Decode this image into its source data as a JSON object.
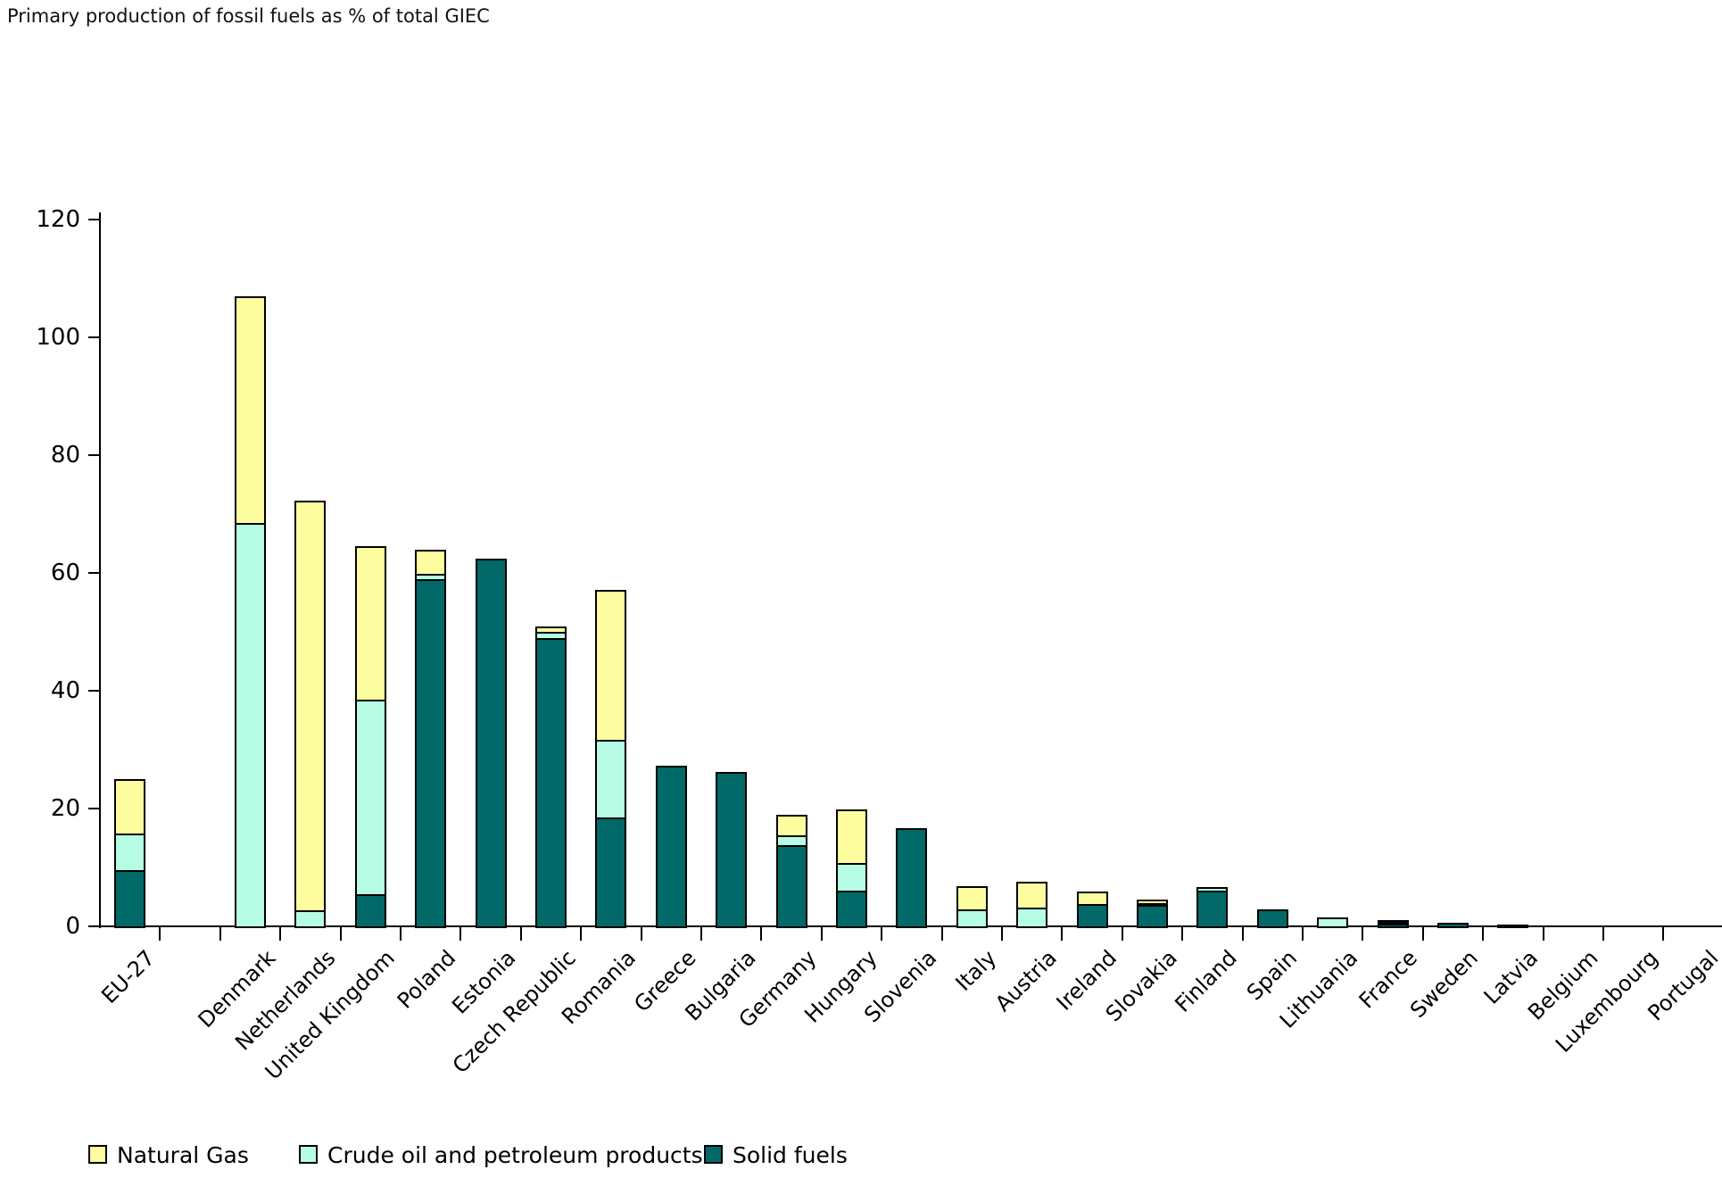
{
  "chart_data": {
    "type": "bar",
    "subtype": "stacked-vertical",
    "title": "Primary production of fossil fuels as % of total GIEC",
    "xlabel": "",
    "ylabel": "",
    "ylim": [
      0,
      120
    ],
    "ytick_values": [
      0,
      20,
      40,
      60,
      80,
      100,
      120
    ],
    "ytick_labels": [
      "0",
      "20",
      "40",
      "60",
      "80",
      "100",
      "120"
    ],
    "grid": false,
    "legend_position": "bottom",
    "gap_after_first_category": true,
    "categories": [
      "EU-27",
      "Denmark",
      "Netherlands",
      "United Kingdom",
      "Poland",
      "Estonia",
      "Czech Republic",
      "Romania",
      "Greece",
      "Bulgaria",
      "Germany",
      "Hungary",
      "Slovenia",
      "Italy",
      "Austria",
      "Ireland",
      "Slovakia",
      "Finland",
      "Spain",
      "Lithuania",
      "France",
      "Sweden",
      "Latvia",
      "Belgium",
      "Luxembourg",
      "Portugal"
    ],
    "series": [
      {
        "name": "Solid fuels",
        "color": "#026969",
        "stack_order": "bottom",
        "values": [
          9.6,
          0,
          0,
          5.5,
          59.0,
          62.5,
          48.9,
          18.5,
          27.2,
          26.2,
          13.8,
          6.1,
          16.7,
          0,
          0,
          3.8,
          3.7,
          6.0,
          2.9,
          0,
          0.4,
          0.6,
          0.3,
          0,
          0,
          0
        ]
      },
      {
        "name": "Crude oil and petroleum products",
        "color": "#B7FCE4",
        "stack_order": "middle",
        "values": [
          6.2,
          68.5,
          2.8,
          33.0,
          0.8,
          0,
          1.1,
          13.2,
          0,
          0,
          1.6,
          4.7,
          0,
          2.9,
          3.2,
          0,
          0.2,
          0.7,
          0,
          1.5,
          0.5,
          0,
          0,
          0,
          0,
          0
        ]
      },
      {
        "name": "Natural Gas",
        "color": "#FDFD9F",
        "stack_order": "top",
        "values": [
          9.2,
          38.5,
          69.4,
          26.0,
          4.1,
          0,
          0.9,
          25.4,
          0,
          0,
          3.5,
          9.1,
          0,
          3.9,
          4.4,
          2.1,
          0.6,
          0,
          0,
          0,
          0.1,
          0,
          0,
          0,
          0,
          0
        ]
      }
    ]
  },
  "legend": {
    "items": [
      {
        "label": "Natural Gas",
        "color": "#FDFD9F"
      },
      {
        "label": "Crude oil and petroleum products",
        "color": "#B7FCE4"
      },
      {
        "label": "Solid fuels",
        "color": "#026969"
      }
    ]
  }
}
